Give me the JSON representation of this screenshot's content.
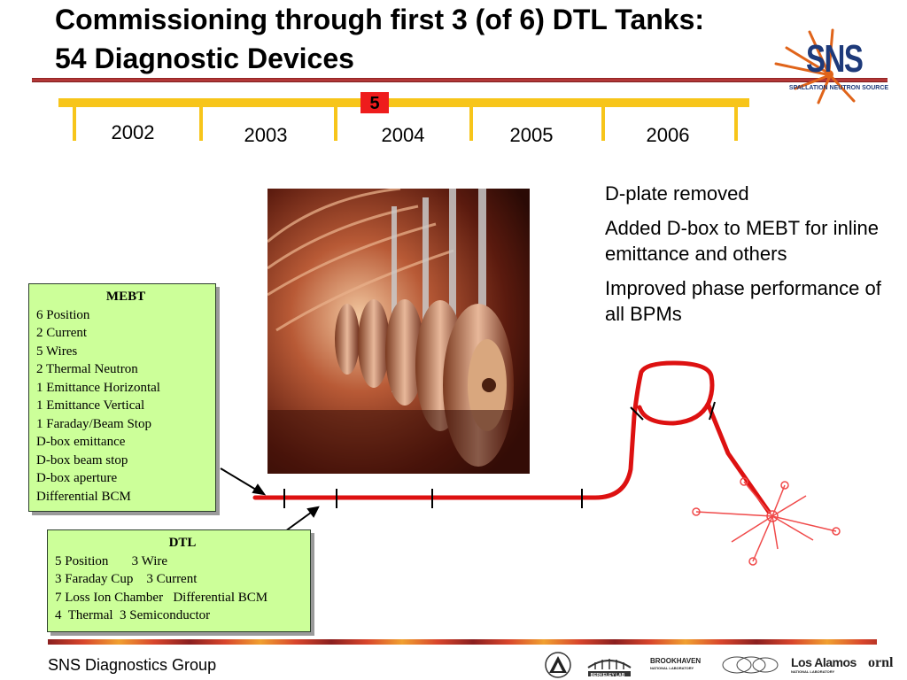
{
  "slide": {
    "title_line1": "Commissioning through first 3 (of 6) DTL Tanks:",
    "title_line2": "54 Diagnostic Devices"
  },
  "logo": {
    "wordmark": "SNS",
    "subtitle": "SPALLATION NEUTRON SOURCE"
  },
  "timeline": {
    "years": [
      "2002",
      "2003",
      "2004",
      "2005",
      "2006"
    ],
    "marker": "5"
  },
  "notes": [
    "D-plate removed",
    "Added D-box to MEBT for inline emittance and others",
    "Improved phase performance of all BPMs"
  ],
  "mebt": {
    "title": "MEBT",
    "items": [
      "6 Position",
      "2 Current",
      "5 Wires",
      "2 Thermal Neutron",
      "1 Emittance Horizontal",
      "1 Emittance Vertical",
      "1 Faraday/Beam Stop",
      "D-box emittance",
      "D-box beam stop",
      "D-box aperture",
      "Differential BCM"
    ]
  },
  "dtl": {
    "title": "DTL",
    "rows": [
      "5 Position       3 Wire",
      "3 Faraday Cup    3 Current",
      "7 Loss Ion Chamber   Differential BCM",
      "4  Thermal  3 Semiconductor"
    ]
  },
  "footer": {
    "group": "SNS Diagnostics Group",
    "partners": {
      "brookhaven": "BROOKHAVEN",
      "brookhaven_sub": "NATIONAL LABORATORY",
      "berkeley": "BERKELEY LAB",
      "losalamos": "Los Alamos",
      "losalamos_sub": "NATIONAL LABORATORY",
      "ornl": "ornl"
    }
  },
  "colors": {
    "timeline": "#f7c51a",
    "marker": "#ee1c1c",
    "box_fill": "#ccff99",
    "beamline": "#dd1111",
    "title_rule": "#8a1f1f"
  }
}
